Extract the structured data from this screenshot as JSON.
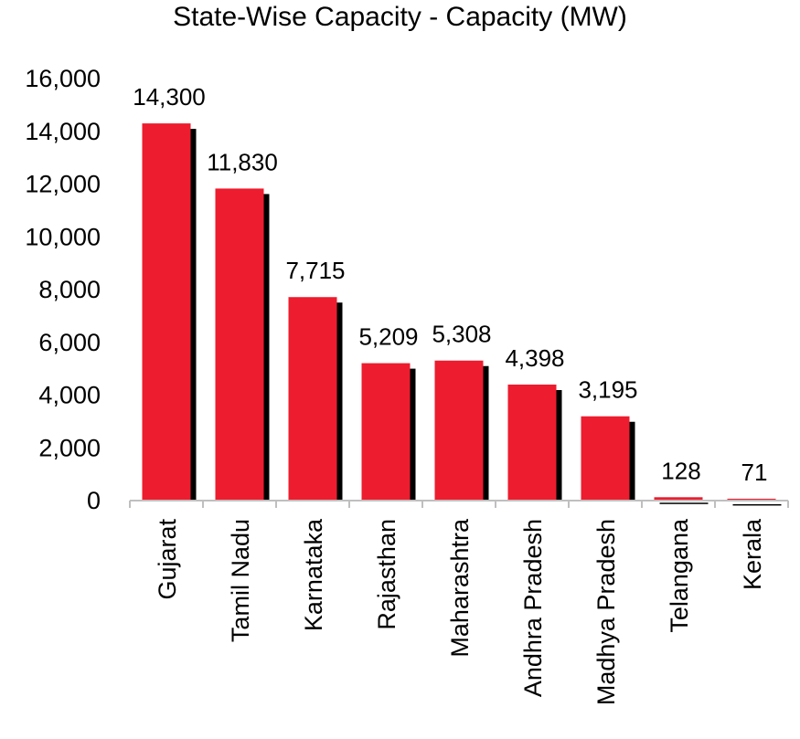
{
  "chart_data": {
    "type": "bar",
    "title": "State-Wise Capacity - Capacity (MW)",
    "xlabel": "",
    "ylabel": "",
    "categories": [
      "Gujarat",
      "Tamil Nadu",
      "Karnataka",
      "Rajasthan",
      "Maharashtra",
      "Andhra Pradesh",
      "Madhya Pradesh",
      "Telangana",
      "Kerala"
    ],
    "values": [
      14300,
      11830,
      7715,
      5209,
      5308,
      4398,
      3195,
      128,
      71
    ],
    "data_labels": [
      "14,300",
      "11,830",
      "7,715",
      "5,209",
      "5,308",
      "4,398",
      "3,195",
      "128",
      "71"
    ],
    "ylim": [
      0,
      16000
    ],
    "yticks": [
      0,
      2000,
      4000,
      6000,
      8000,
      10000,
      12000,
      14000,
      16000
    ],
    "ytick_labels": [
      "0",
      "2,000",
      "4,000",
      "6,000",
      "8,000",
      "10,000",
      "12,000",
      "14,000",
      "16,000"
    ],
    "grid": false,
    "legend": "none",
    "bar_color": "#ed1c2e",
    "shadow_color": "#000000"
  }
}
